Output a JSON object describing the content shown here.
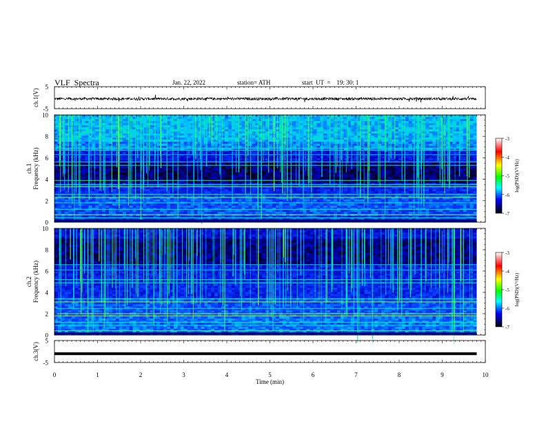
{
  "header": {
    "title": "VLF  Spectra",
    "date": "Jan. 22, 2022",
    "station": "station= ATH",
    "start_ut": "start  UT  =    19: 30: 1"
  },
  "colorbar": {
    "label": "log(PSD)(V²/Hz)",
    "ticks": [
      "-3",
      "-4",
      "-5",
      "-6",
      "-7"
    ],
    "colors": [
      "#ffffff",
      "#ff0000",
      "#ffff00",
      "#00ff00",
      "#00ffff",
      "#0000ff",
      "#000000"
    ]
  },
  "chart_data": [
    {
      "type": "line",
      "name": "ch1-waveform",
      "ylabel": "ch.1(V)",
      "yticks": [
        "5",
        "-5"
      ],
      "ylim": [
        -5,
        5
      ],
      "xlim": [
        0,
        10
      ],
      "level": -0.5,
      "noise_amplitude": 0.6,
      "end_min": 9.8
    },
    {
      "type": "heatmap",
      "name": "ch1-spectrogram",
      "ylabel": "ch.1\nFrequency (kHz)",
      "yticks": [
        "10",
        "8",
        "6",
        "4",
        "2",
        "0"
      ],
      "ylim": [
        0,
        10
      ],
      "xlim": [
        0,
        10
      ],
      "end_min": 9.8
    },
    {
      "type": "heatmap",
      "name": "ch2-spectrogram",
      "ylabel": "ch.2\nFrequency (kHz)",
      "yticks": [
        "10",
        "8",
        "6",
        "4",
        "2",
        "0"
      ],
      "ylim": [
        0,
        10
      ],
      "xlim": [
        0,
        10
      ],
      "end_min": 9.8
    },
    {
      "type": "line",
      "name": "ch3-waveform",
      "ylabel": "ch.3(V)",
      "yticks": [
        "5",
        "-5"
      ],
      "ylim": [
        -5,
        5
      ],
      "xlim": [
        0,
        10
      ],
      "level": -1.0,
      "noise_amplitude": 0.0,
      "end_min": 9.8
    }
  ],
  "x_axis": {
    "xlabel": "Time  (min)",
    "ticks": [
      "0",
      "1",
      "2",
      "3",
      "4",
      "5",
      "6",
      "7",
      "8",
      "9",
      "10"
    ],
    "xlim": [
      0,
      10
    ]
  }
}
